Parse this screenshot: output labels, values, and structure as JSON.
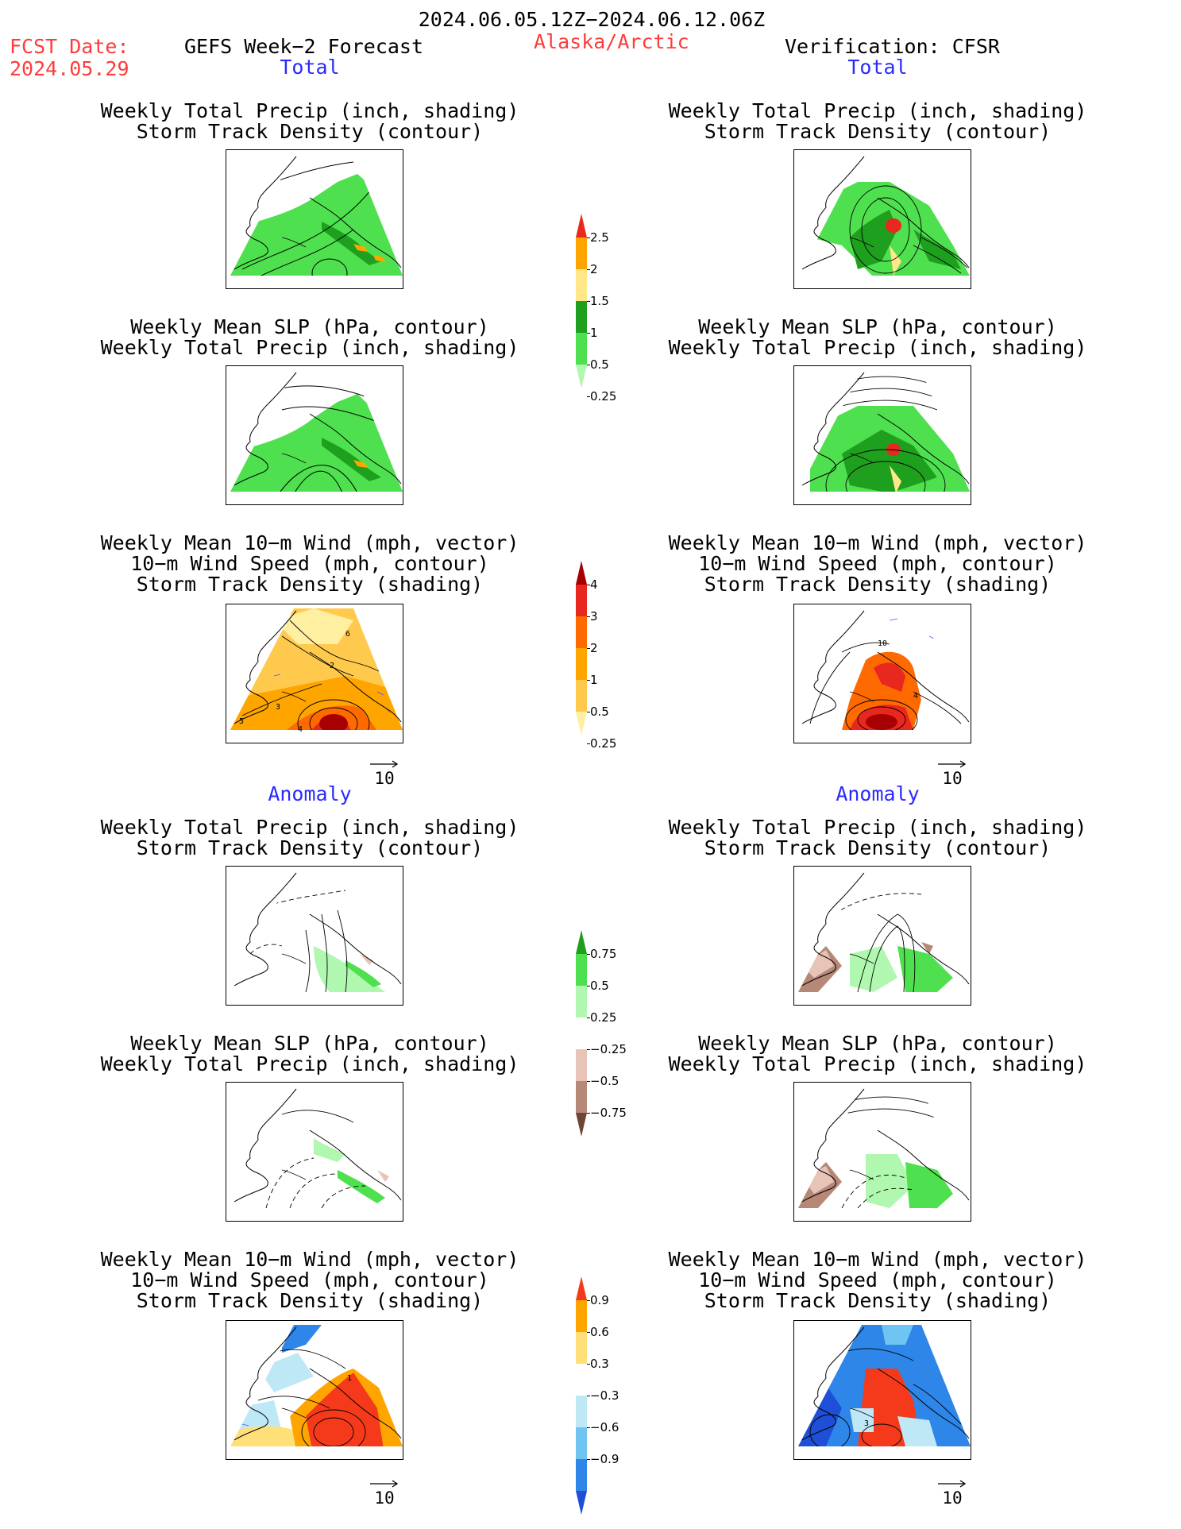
{
  "header": {
    "period": "2024.06.05.12Z−2024.06.12.06Z",
    "fcst_label": "FCST Date:",
    "fcst_date": "2024.05.29",
    "model": "GEFS Week−2 Forecast",
    "region": "Alaska/Arctic",
    "verification": "Verification: CFSR"
  },
  "sections": {
    "total": "Total",
    "anomaly": "Anomaly"
  },
  "titles": {
    "precip_track_1": "Weekly Total Precip (inch, shading)",
    "precip_track_2": "Storm Track Density (contour)",
    "slp_precip_1": "Weekly Mean SLP (hPa, contour)",
    "slp_precip_2": "Weekly Total Precip (inch, shading)",
    "wind_1": "Weekly Mean 10−m Wind (mph, vector)",
    "wind_2": "10−m Wind Speed (mph, contour)",
    "wind_3": "Storm Track Density (shading)"
  },
  "vector_ref": "10",
  "colorbars": {
    "precip_total": {
      "labels": [
        "2.5",
        "2",
        "1.5",
        "1",
        "0.5",
        "0.25"
      ],
      "colors": [
        "#e8281e",
        "#ffa500",
        "#ffe78a",
        "#1ea01e",
        "#4fe04f",
        "#b0f7b0"
      ]
    },
    "track_total": {
      "labels": [
        "4",
        "3",
        "2",
        "1",
        "0.5",
        "0.25"
      ],
      "colors": [
        "#a80000",
        "#e8281e",
        "#ff6a00",
        "#ffa500",
        "#ffc94d",
        "#ffefa0"
      ]
    },
    "precip_anom": {
      "labels": [
        "0.75",
        "0.5",
        "0.25",
        "−0.25",
        "−0.5",
        "−0.75"
      ],
      "colors": [
        "#1ea01e",
        "#4fe04f",
        "#b0f7b0",
        "#ffffff",
        "#e8c4b8",
        "#b58878",
        "#6e4536"
      ]
    },
    "track_anom": {
      "labels": [
        "0.9",
        "0.6",
        "0.3",
        "−0.3",
        "−0.6",
        "−0.9"
      ],
      "colors": [
        "#f53a1c",
        "#ffa500",
        "#ffe078",
        "#ffffff",
        "#bfe8f7",
        "#6fc4f2",
        "#2e86e8",
        "#1f4fd6"
      ]
    }
  },
  "contour_labels": {
    "wind_fcst": [
      "6",
      "2",
      "3",
      "5",
      "4"
    ],
    "wind_obs": [
      "10",
      "4"
    ],
    "wind_anom_fcst": [
      "1"
    ],
    "wind_anom_obs": [
      "3"
    ]
  }
}
